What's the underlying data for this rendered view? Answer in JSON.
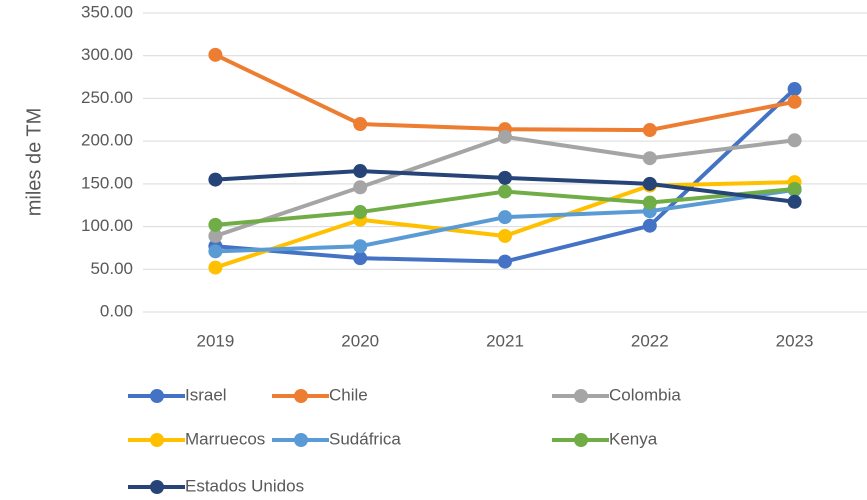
{
  "chart_data": {
    "type": "line",
    "y_label": "miles de TM",
    "categories": [
      "2019",
      "2020",
      "2021",
      "2022",
      "2023"
    ],
    "series": [
      {
        "name": "Israel",
        "color": "#4472c4",
        "values": [
          77,
          63,
          59,
          101,
          261
        ]
      },
      {
        "name": "Chile",
        "color": "#ed7d31",
        "values": [
          301,
          220,
          214,
          213,
          246
        ]
      },
      {
        "name": "Colombia",
        "color": "#a5a5a5",
        "values": [
          89,
          146,
          205,
          180,
          201
        ]
      },
      {
        "name": "Marruecos",
        "color": "#ffc000",
        "values": [
          52,
          108,
          89,
          148,
          152
        ]
      },
      {
        "name": "Sudáfrica",
        "color": "#5b9bd5",
        "values": [
          71,
          77,
          111,
          118,
          143
        ]
      },
      {
        "name": "Kenya",
        "color": "#70ad47",
        "values": [
          102,
          117,
          141,
          128,
          144
        ]
      },
      {
        "name": "Estados Unidos",
        "color": "#264478",
        "values": [
          155,
          165,
          157,
          150,
          129
        ]
      }
    ],
    "ylim": [
      0,
      350
    ],
    "yticks": [
      {
        "value": 0,
        "label": "0.00"
      },
      {
        "value": 50,
        "label": "50.00"
      },
      {
        "value": 100,
        "label": "100.00"
      },
      {
        "value": 150,
        "label": "150.00"
      },
      {
        "value": 200,
        "label": "200.00"
      },
      {
        "value": 250,
        "label": "250.00"
      },
      {
        "value": 300,
        "label": "300.00"
      },
      {
        "value": 350,
        "label": "350.00"
      }
    ],
    "grid": true,
    "legend": "bottom"
  }
}
